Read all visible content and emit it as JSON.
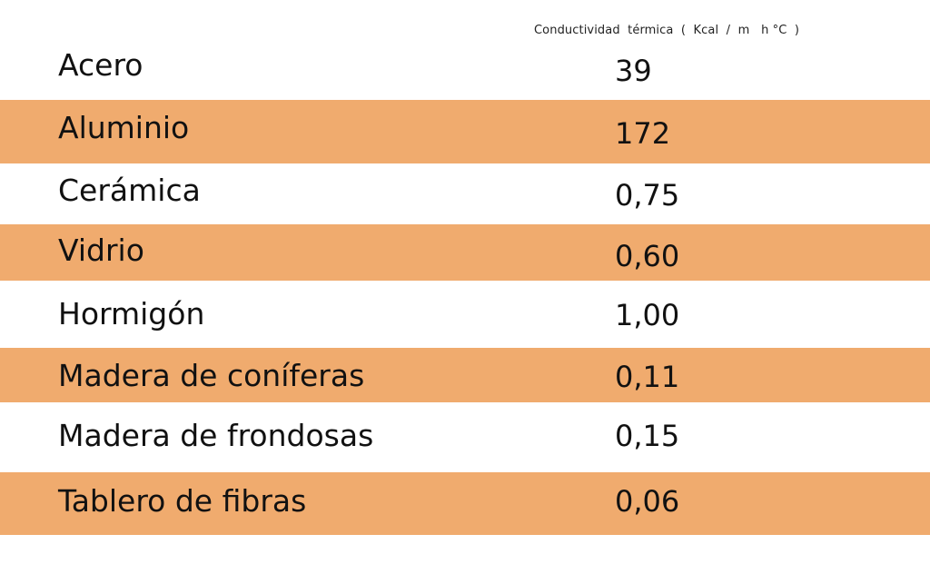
{
  "chart_data": {
    "type": "table",
    "column_header": "Conductividad  térmica  (  Kcal  /  m   h °C  )",
    "rows": [
      {
        "material": "Acero",
        "value": "39"
      },
      {
        "material": "Aluminio",
        "value": "172"
      },
      {
        "material": "Cerámica",
        "value": "0,75"
      },
      {
        "material": "Vidrio",
        "value": "0,60"
      },
      {
        "material": "Hormigón",
        "value": "1,00"
      },
      {
        "material": "Madera de coníferas",
        "value": "0,11"
      },
      {
        "material": "Madera de frondosas",
        "value": "0,15"
      },
      {
        "material": "Tablero de fibras",
        "value": "0,06"
      }
    ],
    "colors": {
      "shaded_row": "#f0ab6e",
      "plain_row": "#ffffff"
    }
  }
}
